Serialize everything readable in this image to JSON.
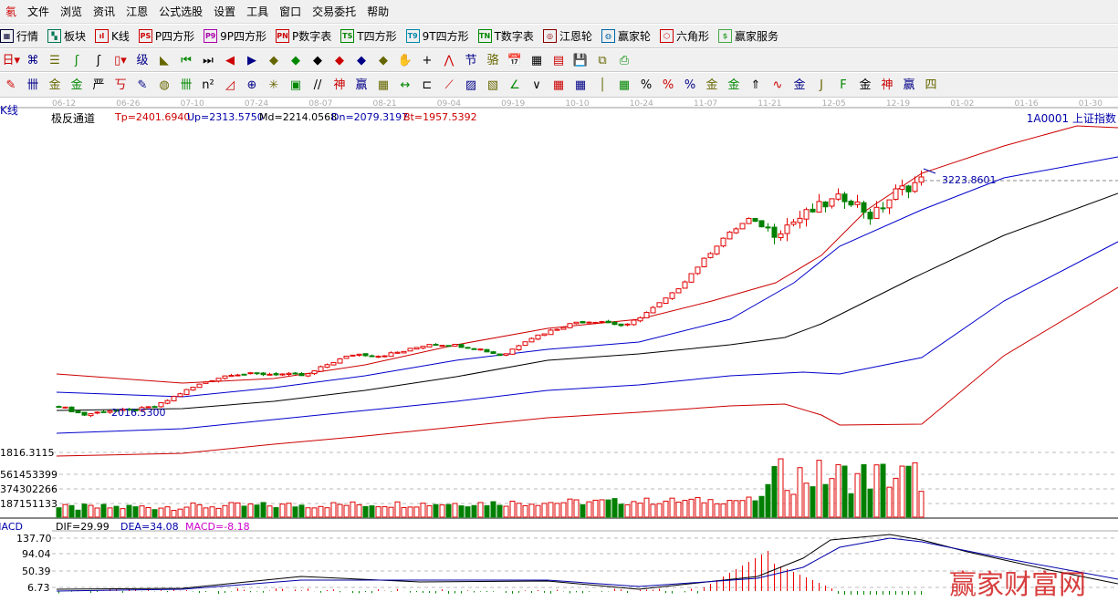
{
  "menu": [
    "文件",
    "浏览",
    "资讯",
    "江恩",
    "公式选股",
    "设置",
    "工具",
    "窗口",
    "交易委托",
    "帮助"
  ],
  "toolbar1": [
    {
      "label": "行情",
      "icon": "table-icon",
      "glyph": "▦",
      "color": "#003"
    },
    {
      "label": "板块",
      "icon": "blocks-icon",
      "glyph": "▚",
      "color": "#075"
    },
    {
      "label": "K线",
      "icon": "candles-icon",
      "glyph": "ıl",
      "color": "#c00"
    },
    {
      "label": "P四方形",
      "icon": "ps-icon",
      "glyph": "PS",
      "color": "#c00"
    },
    {
      "label": "9P四方形",
      "icon": "p9-icon",
      "glyph": "P9",
      "color": "#a0a"
    },
    {
      "label": "P数字表",
      "icon": "pn-icon",
      "glyph": "PN",
      "color": "#c00"
    },
    {
      "label": "T四方形",
      "icon": "ts-icon",
      "glyph": "TS",
      "color": "#080"
    },
    {
      "label": "9T四方形",
      "icon": "t9-icon",
      "glyph": "T9",
      "color": "#08a"
    },
    {
      "label": "T数字表",
      "icon": "tn-icon",
      "glyph": "TN",
      "color": "#080"
    },
    {
      "label": "江恩轮",
      "icon": "gann-wheel-icon",
      "glyph": "◎",
      "color": "#800"
    },
    {
      "label": "赢家轮",
      "icon": "winner-wheel-icon",
      "glyph": "◍",
      "color": "#06a"
    },
    {
      "label": "六角形",
      "icon": "hexagon-icon",
      "glyph": "⬡",
      "color": "#c00"
    },
    {
      "label": "赢家服务",
      "icon": "dollar-icon",
      "glyph": "$",
      "color": "#4a4"
    }
  ],
  "toolbar2": [
    "日▾",
    "⌘",
    "☰",
    "ʃ",
    "ʃ",
    "▯▾",
    "级",
    "◣",
    "⏮",
    "⏭",
    "◀",
    "▶",
    "◆",
    "◆",
    "◆",
    "◆",
    "◆",
    "◆",
    "✋",
    "+",
    "⋀",
    "节",
    "骆",
    "📅",
    "▦",
    "▤",
    "💾",
    "⧉",
    "⎙"
  ],
  "toolbar3": [
    "✎",
    "卌",
    "金",
    "金",
    "严",
    "丂",
    "✎",
    "◍",
    "卌",
    "n²",
    "◿",
    "⊕",
    "✳",
    "▣",
    "//",
    "神",
    "赢",
    "▦",
    "↔",
    "⊏",
    "⟋",
    "▨",
    "▧",
    "∠",
    "∨",
    "▦",
    "▦",
    "│",
    "▦",
    "%",
    "%",
    "%",
    "金",
    "金",
    "⇑",
    "∿",
    "金",
    "J",
    "F",
    "金",
    "神",
    "赢",
    "四"
  ],
  "axis": {
    "dates": [
      "06-12",
      "06-26",
      "07-10",
      "07-24",
      "08-07",
      "08-21",
      "09-04",
      "09-19",
      "10-10",
      "10-24",
      "11-07",
      "11-21",
      "12-05",
      "12-19",
      "01-02",
      "01-16",
      "01-30"
    ]
  },
  "main": {
    "period": "K线",
    "indicator": "极反通道",
    "tp": "Tp=2401.6940",
    "up": "Up=2313.5750",
    "md": "Md=2214.0568",
    "dn": "Dn=2079.3197",
    "bt": "Bt=1957.5392",
    "symbol": "1A0001  上证指数",
    "high_mark": "3223.8601",
    "low_mark": "2016.5300"
  },
  "volume": {
    "labels": [
      "1816.3115",
      "561453399",
      "374302266",
      "187151133"
    ]
  },
  "macd": {
    "name": "MACD",
    "dif": "DIF=29.99",
    "dea": "DEA=34.08",
    "macd": "MACD=-8.18",
    "labels": [
      "137.70",
      "94.04",
      "50.39",
      "6.73"
    ]
  },
  "watermark": "赢家财富网",
  "colors": {
    "up": "#e00000",
    "down": "#008000",
    "dif": "#000000",
    "dea": "#0000a0",
    "macd": "#c000c0"
  },
  "chart_data": {
    "type": "candlestick",
    "key_closes": [
      2050,
      2003,
      2026,
      2026,
      2050,
      2121,
      2178,
      2216,
      2216,
      2216,
      2207,
      2273,
      2321,
      2311,
      2335,
      2373,
      2368,
      2349,
      2311,
      2397,
      2444,
      2487,
      2492,
      2464,
      2549,
      2644,
      2787,
      2929,
      3024,
      2953,
      3024,
      3096,
      3143,
      3034,
      3167,
      3224
    ]
  }
}
